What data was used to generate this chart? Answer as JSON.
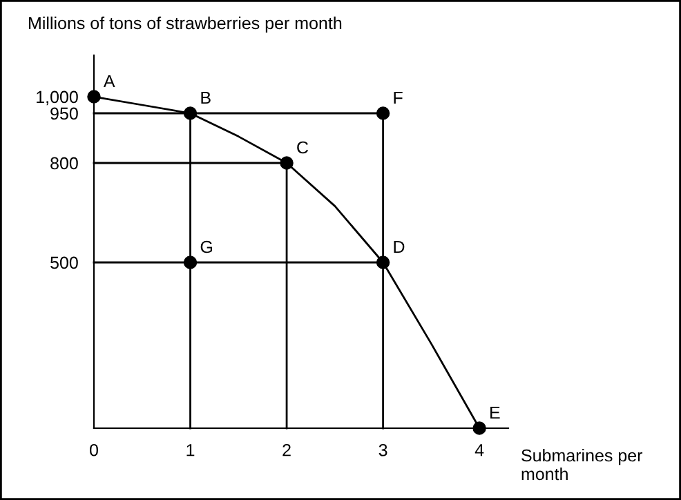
{
  "chart_data": {
    "type": "line",
    "xlabel": "Submarines per month",
    "ylabel": "Millions of tons of strawberries per month",
    "xlim": [
      0,
      4.3
    ],
    "ylim": [
      0,
      1125
    ],
    "xticks": [
      {
        "value": 0,
        "label": "0"
      },
      1,
      2,
      3,
      4
    ],
    "yticks": [
      500,
      800,
      950,
      {
        "value": 1000,
        "label": "1,000"
      }
    ],
    "grid": false,
    "series": [
      {
        "type": "line",
        "marker": "none",
        "color": "#000000",
        "x": [
          0,
          0.5,
          1,
          1.5,
          2,
          2.5,
          3,
          3.5,
          4
        ],
        "values": [
          1000,
          975,
          950,
          880,
          800,
          670,
          500,
          255,
          0
        ]
      },
      {
        "type": "scatter",
        "marker": "circle",
        "color": "#000000",
        "x": [
          0,
          1,
          2,
          3,
          4
        ],
        "values": [
          1000,
          950,
          800,
          500,
          0
        ]
      },
      {
        "type": "scatter",
        "marker": "circle",
        "color": "#000000",
        "x": [
          3,
          1
        ],
        "values": [
          950,
          500
        ]
      },
      {
        "type": "line",
        "marker": "none",
        "color": "#000000",
        "x": [
          0,
          3
        ],
        "values": [
          950,
          950
        ]
      },
      {
        "type": "line",
        "marker": "none",
        "color": "#000000",
        "x": [
          0,
          2
        ],
        "values": [
          800,
          800
        ]
      },
      {
        "type": "line",
        "marker": "none",
        "color": "#000000",
        "x": [
          0,
          3
        ],
        "values": [
          500,
          500
        ]
      },
      {
        "type": "line",
        "marker": "none",
        "color": "#000000",
        "x": [
          1,
          1
        ],
        "values": [
          0,
          950
        ]
      },
      {
        "type": "line",
        "marker": "none",
        "color": "#000000",
        "x": [
          2,
          2
        ],
        "values": [
          0,
          800
        ]
      },
      {
        "type": "line",
        "marker": "none",
        "color": "#000000",
        "x": [
          3,
          3
        ],
        "values": [
          0,
          950
        ]
      }
    ],
    "annotations": [
      {
        "text": "A",
        "x": 0,
        "y": 1000
      },
      {
        "text": "B",
        "x": 1,
        "y": 950
      },
      {
        "text": "C",
        "x": 2,
        "y": 800
      },
      {
        "text": "D",
        "x": 3,
        "y": 500
      },
      {
        "text": "E",
        "x": 4,
        "y": 0
      },
      {
        "text": "F",
        "x": 3,
        "y": 950
      },
      {
        "text": "G",
        "x": 1,
        "y": 500
      }
    ]
  }
}
